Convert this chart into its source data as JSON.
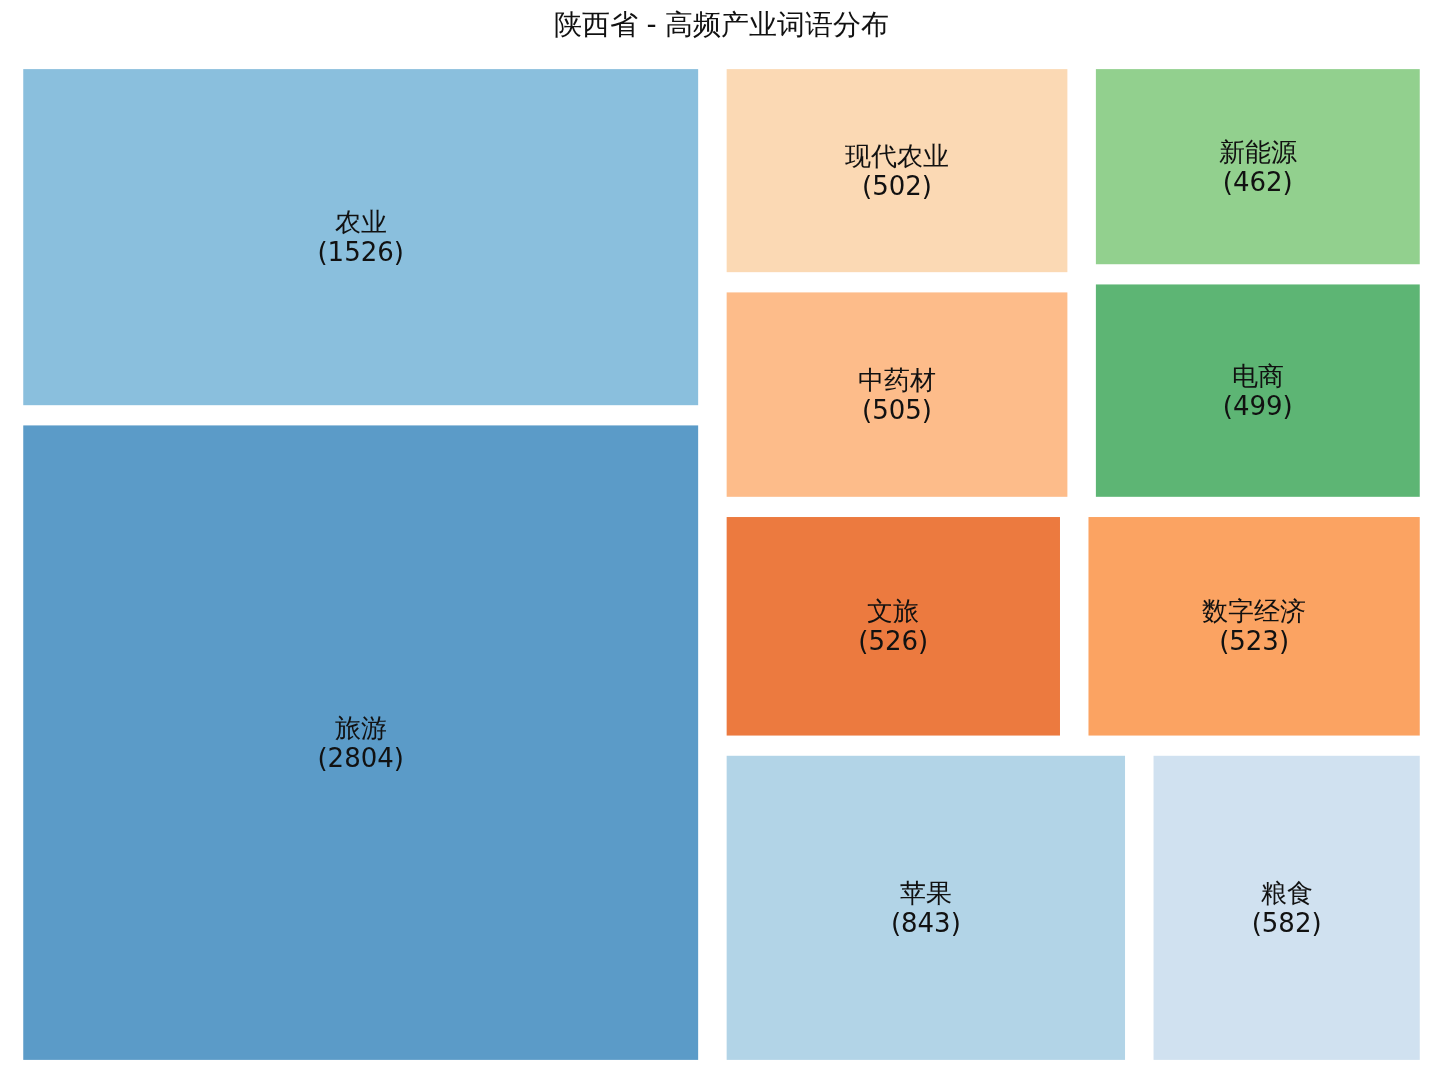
{
  "chart_data": {
    "type": "other",
    "title": "陕西省 - 高频产业词语分布",
    "categories": [
      "旅游",
      "农业",
      "苹果",
      "粮食",
      "文旅",
      "数字经济",
      "中药材",
      "现代农业",
      "电商",
      "新能源"
    ],
    "values": [
      2804,
      1526,
      843,
      582,
      526,
      523,
      505,
      502,
      499,
      462
    ],
    "colors": [
      "#5b9bc8",
      "#8abfdd",
      "#b2d4e7",
      "#d0e1f0",
      "#ec7a3f",
      "#fba362",
      "#fdbc8a",
      "#fbd9b4",
      "#5db574",
      "#92d08e"
    ],
    "value_labels": [
      "(2804)",
      "(1526)",
      "(843)",
      "(582)",
      "(526)",
      "(523)",
      "(505)",
      "(502)",
      "(499)",
      "(462)"
    ]
  }
}
